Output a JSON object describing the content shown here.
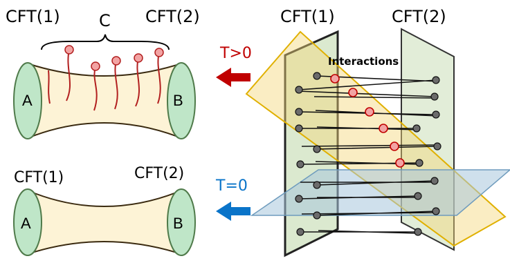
{
  "labels": {
    "cft1": "CFT(1)",
    "cft2": "CFT(2)",
    "c": "C",
    "a": "A",
    "b": "B",
    "t_pos": "T>0",
    "t_zero": "T=0",
    "interactions": "Interactions"
  },
  "colors": {
    "tube_fill": "#fdf3d6",
    "tube_stroke": "#3a2a10",
    "end_fill": "#bfe6c8",
    "end_stroke": "#4f7a4a",
    "string": "#b21f1f",
    "bead_fill": "#f2a3a3",
    "red_arrow": "#c00000",
    "blue_arrow": "#0a74c9",
    "plane_green": "#dbe9cf",
    "plane_yellow": "#f5d77a",
    "plane_blue": "#a8c7dd",
    "dot_fill": "#6b6b6b"
  }
}
